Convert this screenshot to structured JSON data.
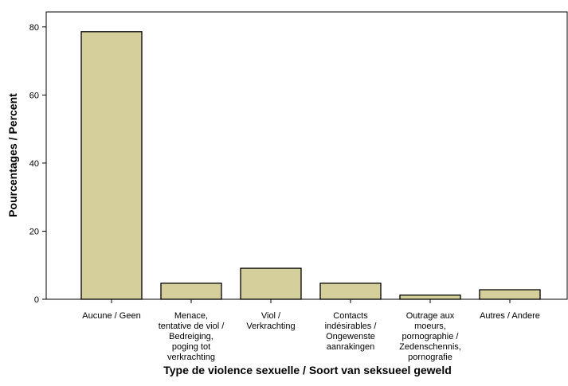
{
  "chart_data": {
    "type": "bar",
    "xlabel": "Type de violence sexuelle / Soort van seksueel geweld",
    "ylabel": "Pourcentages / Percent",
    "categories": [
      "Aucune / Geen",
      "Menace,\ntentative de viol /\nBedreiging,\npoging tot\nverkrachting",
      "Viol /\nVerkrachting",
      "Contacts\nindésirables /\nOngewenste\naanrakingen",
      "Outrage aux\nmoeurs,\npornographie /\nZedenschennis,\npornografie",
      "Autres / Andere"
    ],
    "values": [
      78.6,
      4.7,
      9.1,
      4.7,
      1.2,
      2.8
    ],
    "color": "#d4cf9b",
    "ylim": [
      0,
      84.4
    ],
    "yticks": [
      0,
      20,
      40,
      60,
      80
    ],
    "grid": false
  }
}
